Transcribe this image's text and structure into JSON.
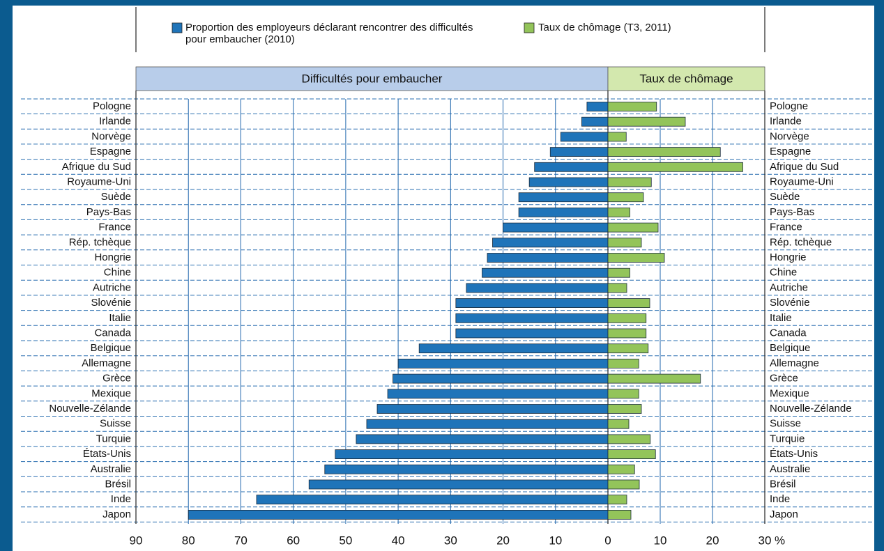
{
  "chart_data": {
    "type": "bar",
    "orientation": "horizontal",
    "categories": [
      "Pologne",
      "Irlande",
      "Norvège",
      "Espagne",
      "Afrique du Sud",
      "Royaume-Uni",
      "Suède",
      "Pays-Bas",
      "France",
      "Rép. tchèque",
      "Hongrie",
      "Chine",
      "Autriche",
      "Slovénie",
      "Italie",
      "Canada",
      "Belgique",
      "Allemagne",
      "Grèce",
      "Mexique",
      "Nouvelle-Zélande",
      "Suisse",
      "Turquie",
      "États-Unis",
      "Australie",
      "Brésil",
      "Inde",
      "Japon"
    ],
    "x_unit": "%",
    "grid": true,
    "panels": [
      {
        "title": "Difficultés pour embaucher",
        "header_color": "#b8cdea",
        "xlim": [
          90,
          0
        ],
        "xticks": [
          90,
          80,
          70,
          60,
          50,
          40,
          30,
          20,
          10,
          0
        ],
        "series": [
          {
            "name": "Proportion des employeurs déclarant rencontrer des difficultés pour embaucher (2010)",
            "color": "#1f74b9",
            "values": [
              4,
              5,
              9,
              11,
              14,
              15,
              17,
              17,
              20,
              22,
              23,
              24,
              27,
              29,
              29,
              29,
              36,
              40,
              41,
              42,
              44,
              46,
              48,
              52,
              54,
              57,
              67,
              80
            ]
          }
        ]
      },
      {
        "title": "Taux de chômage",
        "header_color": "#d3e8ae",
        "xlim": [
          0,
          30
        ],
        "xticks": [
          10,
          20,
          30
        ],
        "series": [
          {
            "name": "Taux de chômage (T3, 2011)",
            "color": "#93c45a",
            "values": [
              9.3,
              14.8,
              3.5,
              21.5,
              25.8,
              8.3,
              6.8,
              4.2,
              9.6,
              6.4,
              10.8,
              4.2,
              3.6,
              8,
              7.3,
              7.3,
              7.7,
              5.9,
              17.7,
              5.9,
              6.4,
              4,
              8.1,
              9.1,
              5.1,
              6,
              3.6,
              4.4
            ]
          }
        ]
      }
    ]
  }
}
